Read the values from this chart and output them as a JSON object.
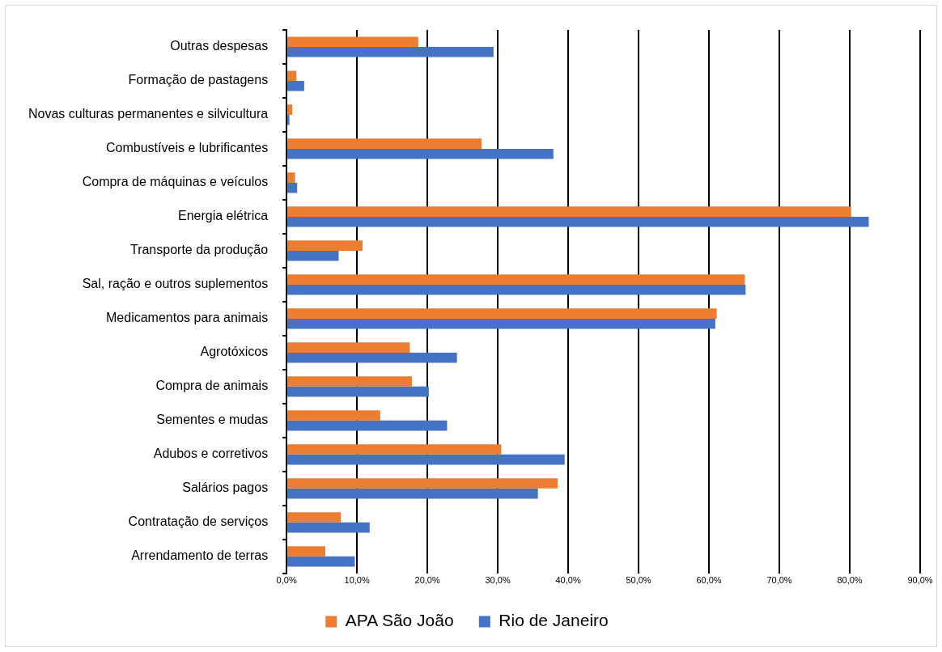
{
  "chart_data": {
    "type": "bar",
    "orientation": "horizontal",
    "categories": [
      "Outras despesas",
      "Formação de pastagens",
      "Novas culturas permanentes e silvicultura",
      "Combustíveis e lubrificantes",
      "Compra de máquinas e veículos",
      "Energia elétrica",
      "Transporte da produção",
      "Sal, ração e outros suplementos",
      "Medicamentos para animais",
      "Agrotóxicos",
      "Compra de animais",
      "Sementes e mudas",
      "Adubos e corretivos",
      "Salários pagos",
      "Contratação de serviços",
      "Arrendamento de terras"
    ],
    "series": [
      {
        "name": "APA São João",
        "color": "#ed7d31",
        "values": [
          18.7,
          1.4,
          0.8,
          27.7,
          1.2,
          80.2,
          10.8,
          65.1,
          61.1,
          17.5,
          17.8,
          13.3,
          30.5,
          38.5,
          7.7,
          5.5
        ]
      },
      {
        "name": "Rio de Janeiro",
        "color": "#4472c4",
        "values": [
          29.4,
          2.5,
          0.4,
          37.9,
          1.5,
          82.7,
          7.4,
          65.2,
          60.9,
          24.2,
          20.2,
          22.8,
          39.5,
          35.7,
          11.8,
          9.7
        ]
      }
    ],
    "xlim": [
      0,
      90
    ],
    "xticks": [
      {
        "value": 0,
        "label": "0,0%"
      },
      {
        "value": 10,
        "label": "10,0%"
      },
      {
        "value": 20,
        "label": "20,0%"
      },
      {
        "value": 30,
        "label": "30,0%"
      },
      {
        "value": 40,
        "label": "40,0%"
      },
      {
        "value": 50,
        "label": "50,0%"
      },
      {
        "value": 60,
        "label": "60,0%"
      },
      {
        "value": 70,
        "label": "70,0%"
      },
      {
        "value": 80,
        "label": "80,0%"
      },
      {
        "value": 90,
        "label": "90,0%"
      }
    ],
    "grid": "x",
    "legend": "bottom"
  }
}
